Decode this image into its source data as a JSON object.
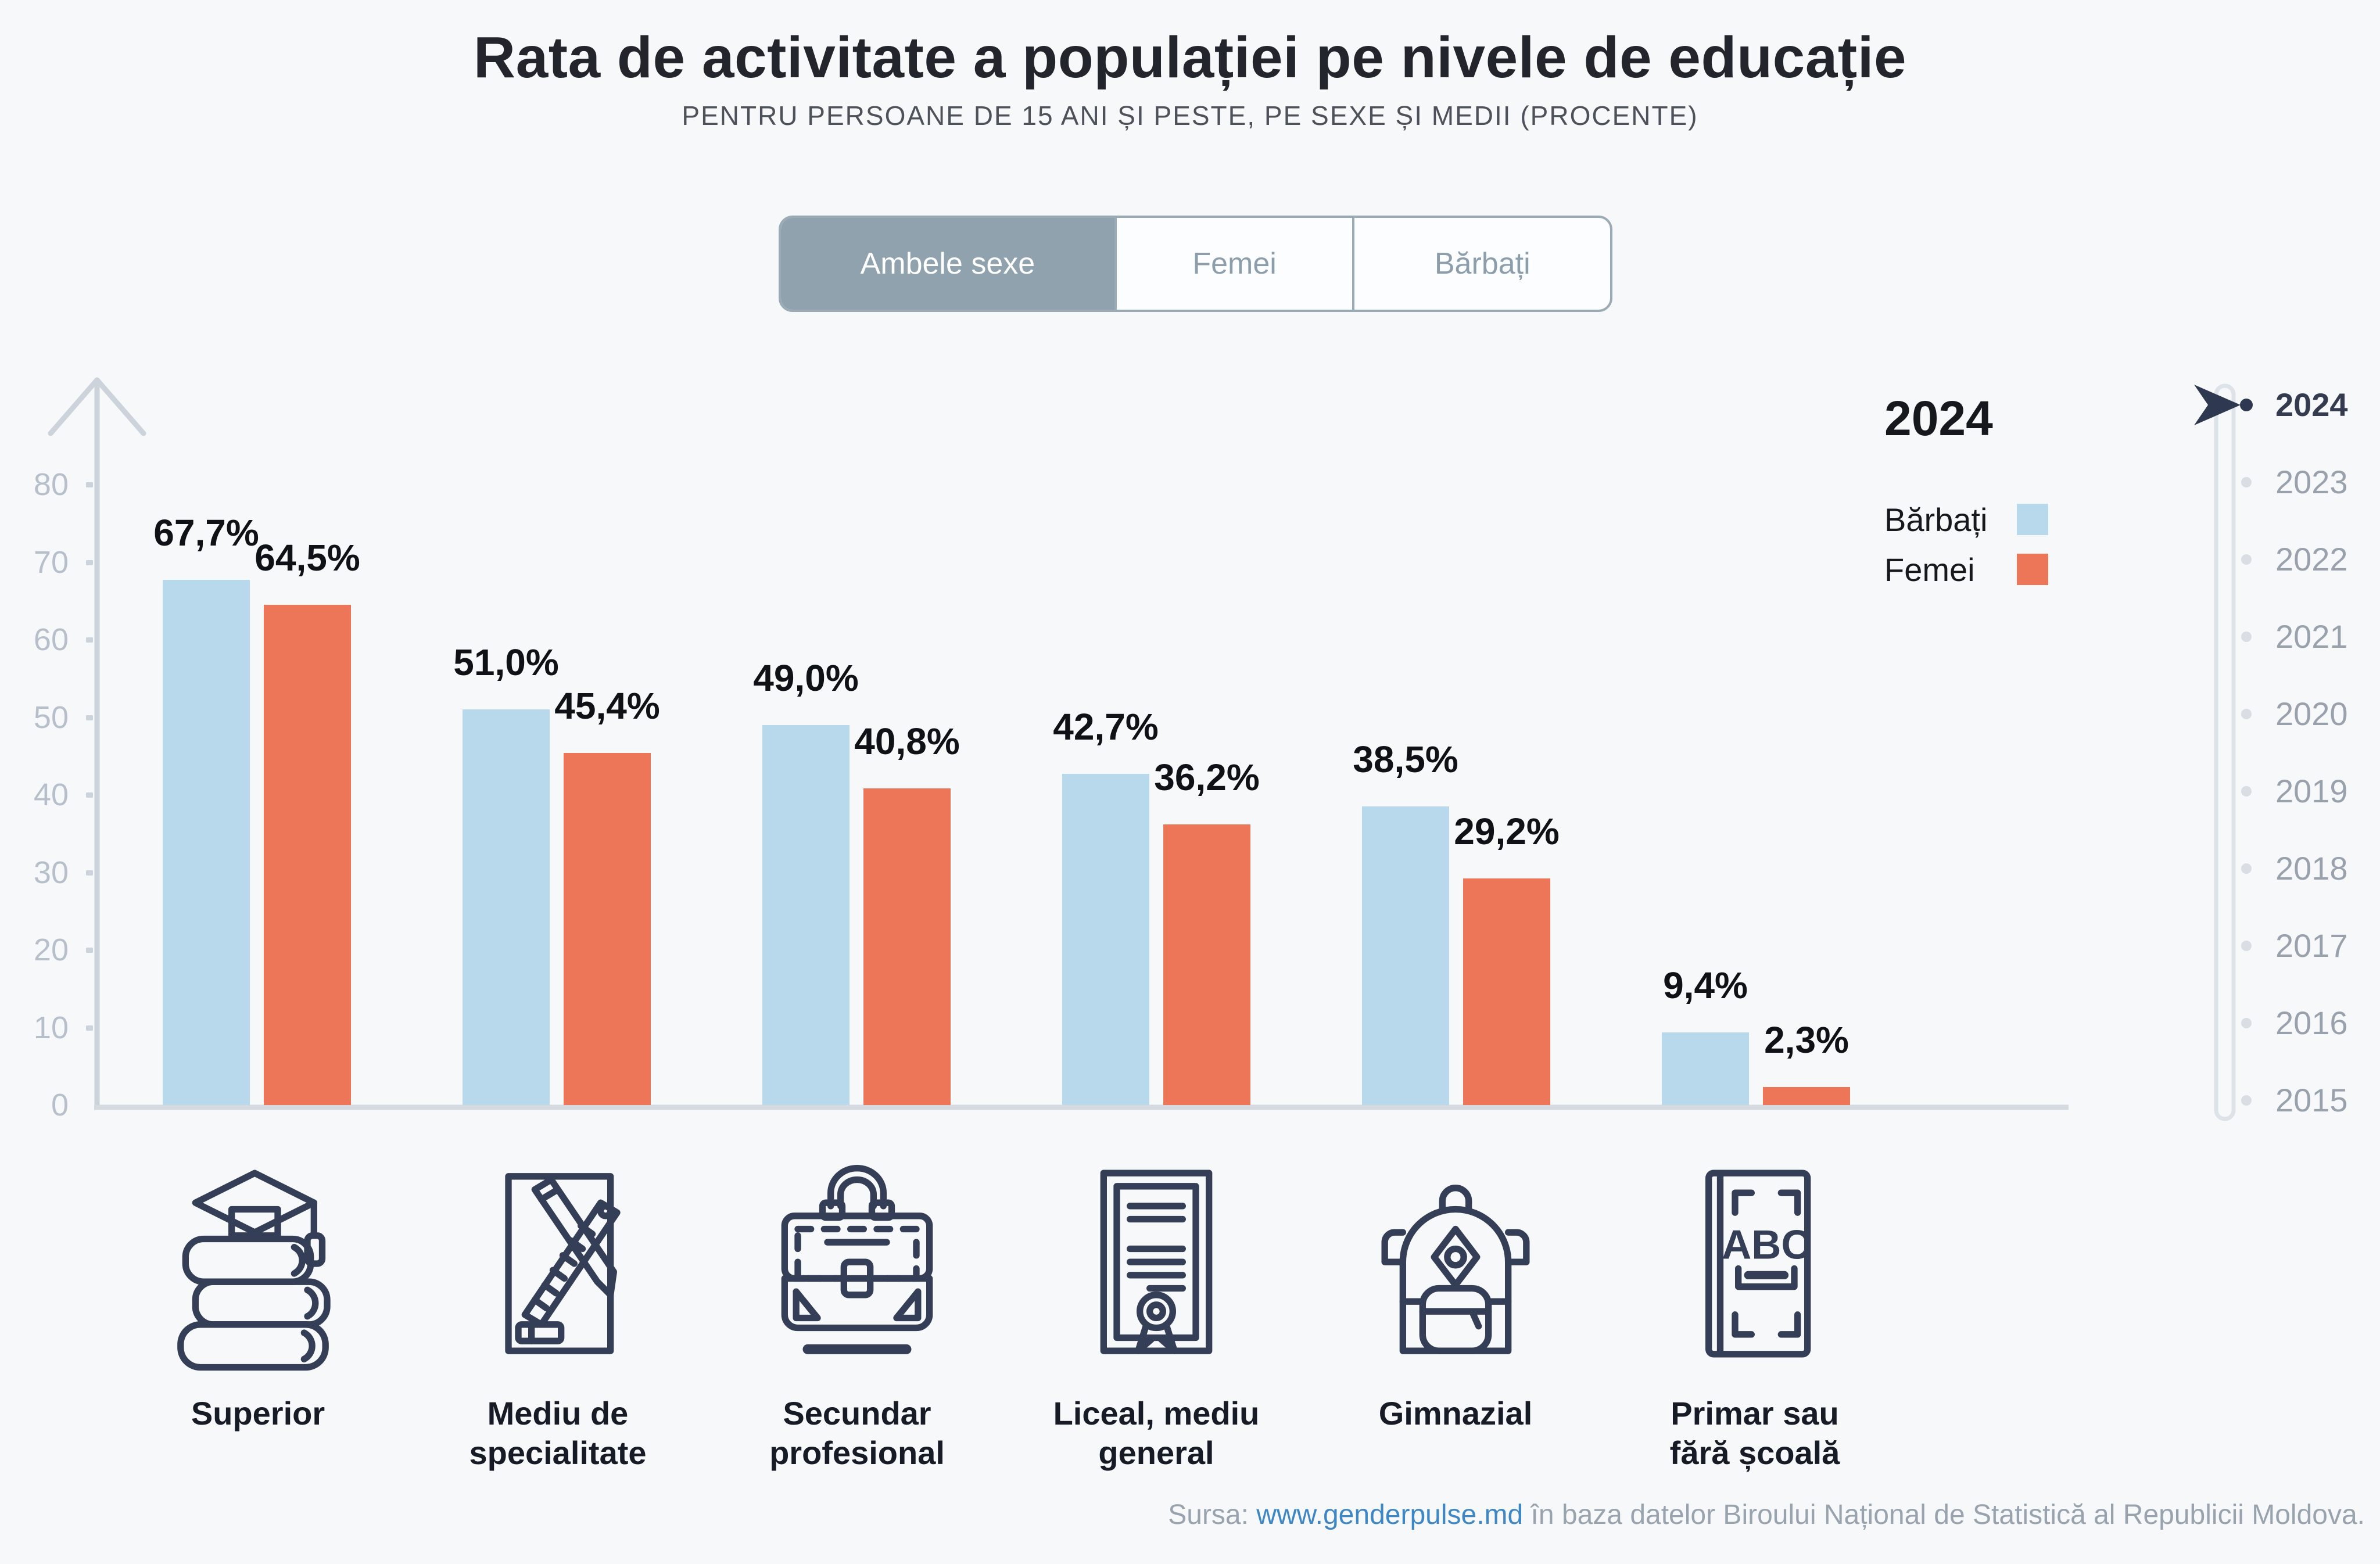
{
  "page": {
    "background_color": "#f7f8f9"
  },
  "header": {
    "title": "Rata de activitate a populației pe nivele de educație",
    "subtitle": "PENTRU PERSOANE DE 15 ANI ȘI PESTE, PE SEXE ȘI MEDII (PROCENTE)"
  },
  "tabs": [
    {
      "label": "Ambele sexe",
      "selected": true
    },
    {
      "label": "Femei",
      "selected": false
    },
    {
      "label": "Bărbați",
      "selected": false
    }
  ],
  "legend": {
    "year": "2024",
    "items": [
      {
        "label": "Bărbați",
        "color": "#b8d8ec"
      },
      {
        "label": "Femei",
        "color": "#ed7659"
      }
    ]
  },
  "timeline": {
    "years": [
      "2024",
      "2023",
      "2022",
      "2021",
      "2020",
      "2019",
      "2018",
      "2017",
      "2016",
      "2015"
    ],
    "active_year": "2024"
  },
  "chart_data": {
    "type": "bar",
    "title": "Rata de activitate a populației pe nivele de educație",
    "subtitle": "Pentru persoane de 15 ani și peste, pe sexe și medii (procente)",
    "year": "2024",
    "unit": "%",
    "categories": [
      "Superior",
      "Mediu de specialitate",
      "Secundar profesional",
      "Liceal, mediu general",
      "Gimnazial",
      "Primar sau fără școală"
    ],
    "series": [
      {
        "name": "Bărbați",
        "color": "#b8d8ec",
        "values": [
          67.7,
          51.0,
          49.0,
          42.7,
          38.5,
          9.4
        ],
        "labels": [
          "67,7%",
          "51,0%",
          "49,0%",
          "42,7%",
          "38,5%",
          "9,4%"
        ]
      },
      {
        "name": "Femei",
        "color": "#ed7659",
        "values": [
          64.5,
          45.4,
          40.8,
          36.2,
          29.2,
          2.3
        ],
        "labels": [
          "64,5%",
          "45,4%",
          "40,8%",
          "36,2%",
          "29,2%",
          "2,3%"
        ]
      }
    ],
    "ylim": [
      0,
      80
    ],
    "yticks": [
      0,
      10,
      20,
      30,
      40,
      50,
      60,
      70,
      80
    ],
    "grid": false,
    "legend_position": "top-right"
  },
  "categories": [
    {
      "label": "Superior",
      "icon": "graduation-books-icon"
    },
    {
      "label": "Mediu de\nspecialitate",
      "icon": "ruler-pencil-icon"
    },
    {
      "label": "Secundar\nprofesional",
      "icon": "briefcase-icon"
    },
    {
      "label": "Liceal, mediu\ngeneral",
      "icon": "diploma-icon"
    },
    {
      "label": "Gimnazial",
      "icon": "backpack-icon"
    },
    {
      "label": "Primar sau\nfără școală",
      "icon": "abc-book-icon"
    }
  ],
  "footer": {
    "prefix": "Sursa: ",
    "link": "www.genderpulse.md",
    "suffix": " în baza datelor Biroului Național de Statistică al Republicii Moldova."
  },
  "colors": {
    "male": "#b8d8ec",
    "female": "#ed7659",
    "accent_dark": "#2e3951",
    "axis": "#ccd3da",
    "tick_label": "#b7c0ca",
    "tab_selected_bg": "#8fa2ae",
    "tab_border": "#9aabb6",
    "tab_unselected_text": "#8c9dab",
    "link": "#3e87c4",
    "footer_text": "#99a3ad"
  }
}
